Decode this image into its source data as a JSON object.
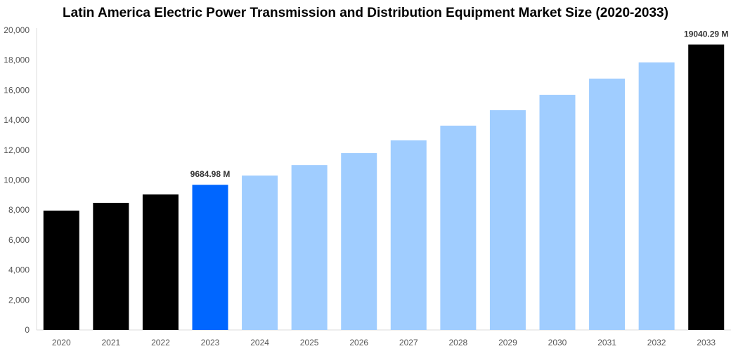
{
  "chart_data": {
    "type": "bar",
    "title": "Latin America Electric Power Transmission and Distribution Equipment Market Size (2020-2033)",
    "xlabel": "",
    "ylabel": "",
    "ylim": [
      0,
      20000
    ],
    "yticks": [
      0,
      2000,
      4000,
      6000,
      8000,
      10000,
      12000,
      14000,
      16000,
      18000,
      20000
    ],
    "ytick_labels": [
      "0",
      "2,000",
      "4,000",
      "6,000",
      "8,000",
      "10,000",
      "12,000",
      "14,000",
      "16,000",
      "18,000",
      "20,000"
    ],
    "categories": [
      "2020",
      "2021",
      "2022",
      "2023",
      "2024",
      "2025",
      "2026",
      "2027",
      "2028",
      "2029",
      "2030",
      "2031",
      "2032",
      "2033"
    ],
    "values": [
      7960,
      8480,
      9040,
      9684.98,
      10300,
      11000,
      11800,
      12650,
      13630,
      14660,
      15690,
      16770,
      17850,
      19040.29
    ],
    "colors": [
      "#000000",
      "#000000",
      "#000000",
      "#0066ff",
      "#a0cdff",
      "#a0cdff",
      "#a0cdff",
      "#a0cdff",
      "#a0cdff",
      "#a0cdff",
      "#a0cdff",
      "#a0cdff",
      "#a0cdff",
      "#000000"
    ],
    "data_labels": [
      {
        "category": "2023",
        "text": "9684.98 M"
      },
      {
        "category": "2033",
        "text": "19040.29 M"
      }
    ],
    "grid": false,
    "legend": "none"
  }
}
